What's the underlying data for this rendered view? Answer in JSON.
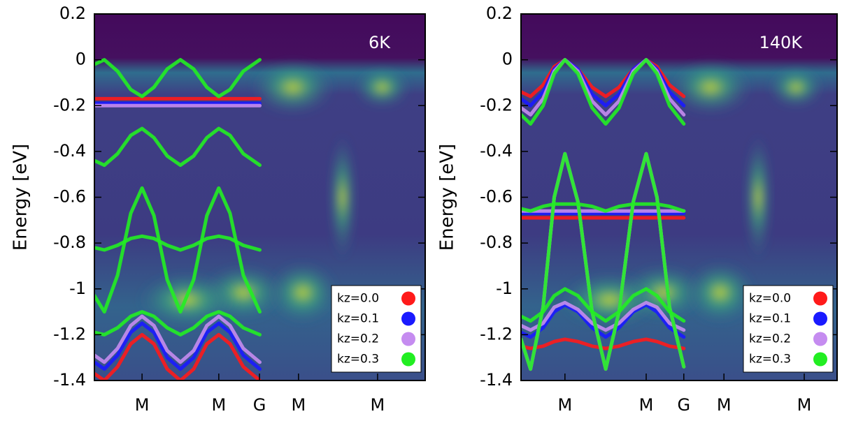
{
  "chart_data": [
    {
      "type": "line",
      "ylabel": "Energy [eV]",
      "annotation": "6K",
      "legend": "lower right",
      "xlim": [
        0,
        1
      ],
      "ylim": [
        -1.4,
        0.2
      ],
      "yticks": [
        0.2,
        0,
        -0.2,
        -0.4,
        -0.6,
        -0.8,
        -1,
        -1.2,
        -1.4
      ],
      "xticks": [
        {
          "value": 0.144,
          "label": "M"
        },
        {
          "value": 0.376,
          "label": "M"
        },
        {
          "value": 0.499,
          "label": "G"
        },
        {
          "value": 0.617,
          "label": "M"
        },
        {
          "value": 0.856,
          "label": "M"
        }
      ],
      "x": [
        0,
        0.03,
        0.07,
        0.11,
        0.144,
        0.18,
        0.22,
        0.26,
        0.3,
        0.34,
        0.376,
        0.41,
        0.45,
        0.5
      ],
      "series": [
        {
          "name": "kz=0.0",
          "color": "#ff1a1a",
          "bands": [
            [
              -0.17,
              -0.17,
              -0.17,
              -0.17,
              -0.17,
              -0.17,
              -0.17,
              -0.17,
              -0.17,
              -0.17,
              -0.17,
              -0.17,
              -0.17,
              -0.17
            ],
            [
              -1.37,
              -1.4,
              -1.34,
              -1.24,
              -1.2,
              -1.24,
              -1.35,
              -1.4,
              -1.35,
              -1.24,
              -1.2,
              -1.24,
              -1.34,
              -1.4
            ]
          ]
        },
        {
          "name": "kz=0.1",
          "color": "#1a1aff",
          "bands": [
            [
              -0.19,
              -0.19,
              -0.19,
              -0.19,
              -0.19,
              -0.19,
              -0.19,
              -0.19,
              -0.19,
              -0.19,
              -0.19,
              -0.19,
              -0.19,
              -0.19
            ],
            [
              -1.32,
              -1.35,
              -1.29,
              -1.19,
              -1.15,
              -1.19,
              -1.3,
              -1.35,
              -1.3,
              -1.19,
              -1.15,
              -1.19,
              -1.29,
              -1.35
            ]
          ]
        },
        {
          "name": "kz=0.2",
          "color": "#c58cf0",
          "bands": [
            [
              -0.2,
              -0.2,
              -0.2,
              -0.2,
              -0.2,
              -0.2,
              -0.2,
              -0.2,
              -0.2,
              -0.2,
              -0.2,
              -0.2,
              -0.2,
              -0.2
            ],
            [
              -1.29,
              -1.32,
              -1.26,
              -1.16,
              -1.12,
              -1.16,
              -1.27,
              -1.32,
              -1.27,
              -1.16,
              -1.12,
              -1.16,
              -1.26,
              -1.32
            ]
          ]
        },
        {
          "name": "kz=0.3",
          "color": "#22ee22",
          "bands": [
            [
              -0.02,
              0,
              -0.05,
              -0.13,
              -0.16,
              -0.12,
              -0.04,
              0,
              -0.04,
              -0.12,
              -0.16,
              -0.13,
              -0.05,
              0
            ],
            [
              -0.44,
              -0.46,
              -0.41,
              -0.33,
              -0.3,
              -0.34,
              -0.42,
              -0.46,
              -0.42,
              -0.34,
              -0.3,
              -0.33,
              -0.41,
              -0.46
            ],
            [
              -1.03,
              -1.1,
              -0.94,
              -0.67,
              -0.56,
              -0.68,
              -0.96,
              -1.1,
              -0.96,
              -0.68,
              -0.56,
              -0.67,
              -0.94,
              -1.1
            ],
            [
              -0.82,
              -0.83,
              -0.81,
              -0.78,
              -0.77,
              -0.78,
              -0.81,
              -0.83,
              -0.81,
              -0.78,
              -0.77,
              -0.78,
              -0.81,
              -0.83
            ],
            [
              -1.19,
              -1.2,
              -1.17,
              -1.12,
              -1.1,
              -1.12,
              -1.17,
              -1.2,
              -1.17,
              -1.12,
              -1.1,
              -1.12,
              -1.17,
              -1.2
            ]
          ]
        }
      ]
    },
    {
      "type": "line",
      "ylabel": "Energy [eV]",
      "annotation": "140K",
      "legend": "lower right",
      "xlim": [
        0,
        1
      ],
      "ylim": [
        -1.4,
        0.2
      ],
      "yticks": [
        0.2,
        0,
        -0.2,
        -0.4,
        -0.6,
        -0.8,
        -1,
        -1.2,
        -1.4
      ],
      "xticks": [
        {
          "value": 0.139,
          "label": "M"
        },
        {
          "value": 0.396,
          "label": "M"
        },
        {
          "value": 0.515,
          "label": "G"
        },
        {
          "value": 0.642,
          "label": "M"
        },
        {
          "value": 0.896,
          "label": "M"
        }
      ],
      "x": [
        0,
        0.03,
        0.07,
        0.105,
        0.139,
        0.18,
        0.225,
        0.268,
        0.31,
        0.355,
        0.396,
        0.43,
        0.47,
        0.515
      ],
      "series": [
        {
          "name": "kz=0.0",
          "color": "#ff1a1a",
          "bands": [
            [
              -1.22,
              -1.35,
              -1.08,
              -0.6,
              -0.41,
              -0.62,
              -1.1,
              -1.35,
              -1.1,
              -0.62,
              -0.41,
              -0.6,
              -1.08,
              -1.34
            ],
            [
              -0.69,
              -0.69,
              -0.69,
              -0.69,
              -0.69,
              -0.69,
              -0.69,
              -0.69,
              -0.69,
              -0.69,
              -0.69,
              -0.69,
              -0.69,
              -0.69
            ],
            [
              -0.14,
              -0.16,
              -0.11,
              -0.03,
              0,
              -0.04,
              -0.12,
              -0.16,
              -0.12,
              -0.04,
              0,
              -0.03,
              -0.11,
              -0.16
            ],
            [
              -1.25,
              -1.26,
              -1.25,
              -1.23,
              -1.22,
              -1.23,
              -1.25,
              -1.26,
              -1.25,
              -1.23,
              -1.22,
              -1.23,
              -1.25,
              -1.26
            ]
          ]
        },
        {
          "name": "kz=0.1",
          "color": "#1a1aff",
          "bands": [
            [
              -1.22,
              -1.35,
              -1.08,
              -0.6,
              -0.41,
              -0.62,
              -1.1,
              -1.35,
              -1.1,
              -0.62,
              -0.41,
              -0.6,
              -1.08,
              -1.34
            ],
            [
              -0.67,
              -0.67,
              -0.67,
              -0.67,
              -0.67,
              -0.67,
              -0.67,
              -0.67,
              -0.67,
              -0.67,
              -0.67,
              -0.67,
              -0.67,
              -0.67
            ],
            [
              -0.17,
              -0.2,
              -0.14,
              -0.04,
              0,
              -0.04,
              -0.15,
              -0.2,
              -0.15,
              -0.04,
              0,
              -0.04,
              -0.14,
              -0.2
            ],
            [
              -1.19,
              -1.21,
              -1.17,
              -1.1,
              -1.07,
              -1.1,
              -1.17,
              -1.21,
              -1.17,
              -1.1,
              -1.07,
              -1.1,
              -1.17,
              -1.21
            ]
          ]
        },
        {
          "name": "kz=0.2",
          "color": "#c58cf0",
          "bands": [
            [
              -1.22,
              -1.35,
              -1.08,
              -0.6,
              -0.41,
              -0.62,
              -1.1,
              -1.35,
              -1.1,
              -0.62,
              -0.41,
              -0.6,
              -1.08,
              -1.34
            ],
            [
              -0.66,
              -0.66,
              -0.66,
              -0.66,
              -0.66,
              -0.66,
              -0.66,
              -0.66,
              -0.66,
              -0.66,
              -0.66,
              -0.66,
              -0.66,
              -0.66
            ],
            [
              -0.21,
              -0.24,
              -0.17,
              -0.05,
              0,
              -0.05,
              -0.18,
              -0.24,
              -0.18,
              -0.05,
              0,
              -0.05,
              -0.17,
              -0.24
            ],
            [
              -1.16,
              -1.18,
              -1.15,
              -1.08,
              -1.06,
              -1.09,
              -1.15,
              -1.18,
              -1.15,
              -1.09,
              -1.06,
              -1.08,
              -1.15,
              -1.18
            ]
          ]
        },
        {
          "name": "kz=0.3",
          "color": "#22ee22",
          "bands": [
            [
              -1.22,
              -1.35,
              -1.08,
              -0.6,
              -0.41,
              -0.62,
              -1.1,
              -1.35,
              -1.1,
              -0.62,
              -0.41,
              -0.6,
              -1.08,
              -1.34
            ],
            [
              -0.65,
              -0.66,
              -0.64,
              -0.63,
              -0.63,
              -0.63,
              -0.64,
              -0.66,
              -0.64,
              -0.63,
              -0.63,
              -0.63,
              -0.64,
              -0.66
            ],
            [
              -0.24,
              -0.28,
              -0.2,
              -0.06,
              0,
              -0.06,
              -0.21,
              -0.28,
              -0.21,
              -0.06,
              0,
              -0.06,
              -0.2,
              -0.28
            ],
            [
              -1.12,
              -1.14,
              -1.1,
              -1.03,
              -1.0,
              -1.03,
              -1.1,
              -1.14,
              -1.1,
              -1.03,
              -1.0,
              -1.03,
              -1.1,
              -1.14
            ]
          ]
        }
      ]
    }
  ]
}
